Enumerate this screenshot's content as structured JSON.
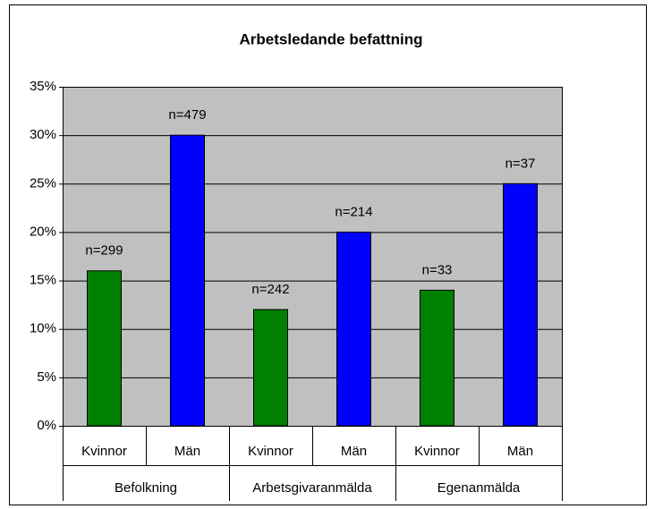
{
  "chart_data": {
    "type": "bar",
    "title": "Arbetsledande befattning",
    "categories": [
      "Kvinnor",
      "Män",
      "Kvinnor",
      "Män",
      "Kvinnor",
      "Män"
    ],
    "groups": [
      "Befolkning",
      "Arbetsgivaranmälda",
      "Egenanmälda"
    ],
    "values": [
      16,
      30,
      12,
      20,
      14,
      25
    ],
    "annotations": [
      "n=299",
      "n=479",
      "n=242",
      "n=214",
      "n=33",
      "n=37"
    ],
    "colors": [
      "#008000",
      "#0000ff",
      "#008000",
      "#0000ff",
      "#008000",
      "#0000ff"
    ],
    "ylim": [
      0,
      35
    ],
    "yticks": [
      {
        "value": 0,
        "label": "0%"
      },
      {
        "value": 5,
        "label": "5%"
      },
      {
        "value": 10,
        "label": "10%"
      },
      {
        "value": 15,
        "label": "15%"
      },
      {
        "value": 20,
        "label": "20%"
      },
      {
        "value": 25,
        "label": "25%"
      },
      {
        "value": 30,
        "label": "30%"
      },
      {
        "value": 35,
        "label": "35%"
      }
    ],
    "grid": true
  }
}
